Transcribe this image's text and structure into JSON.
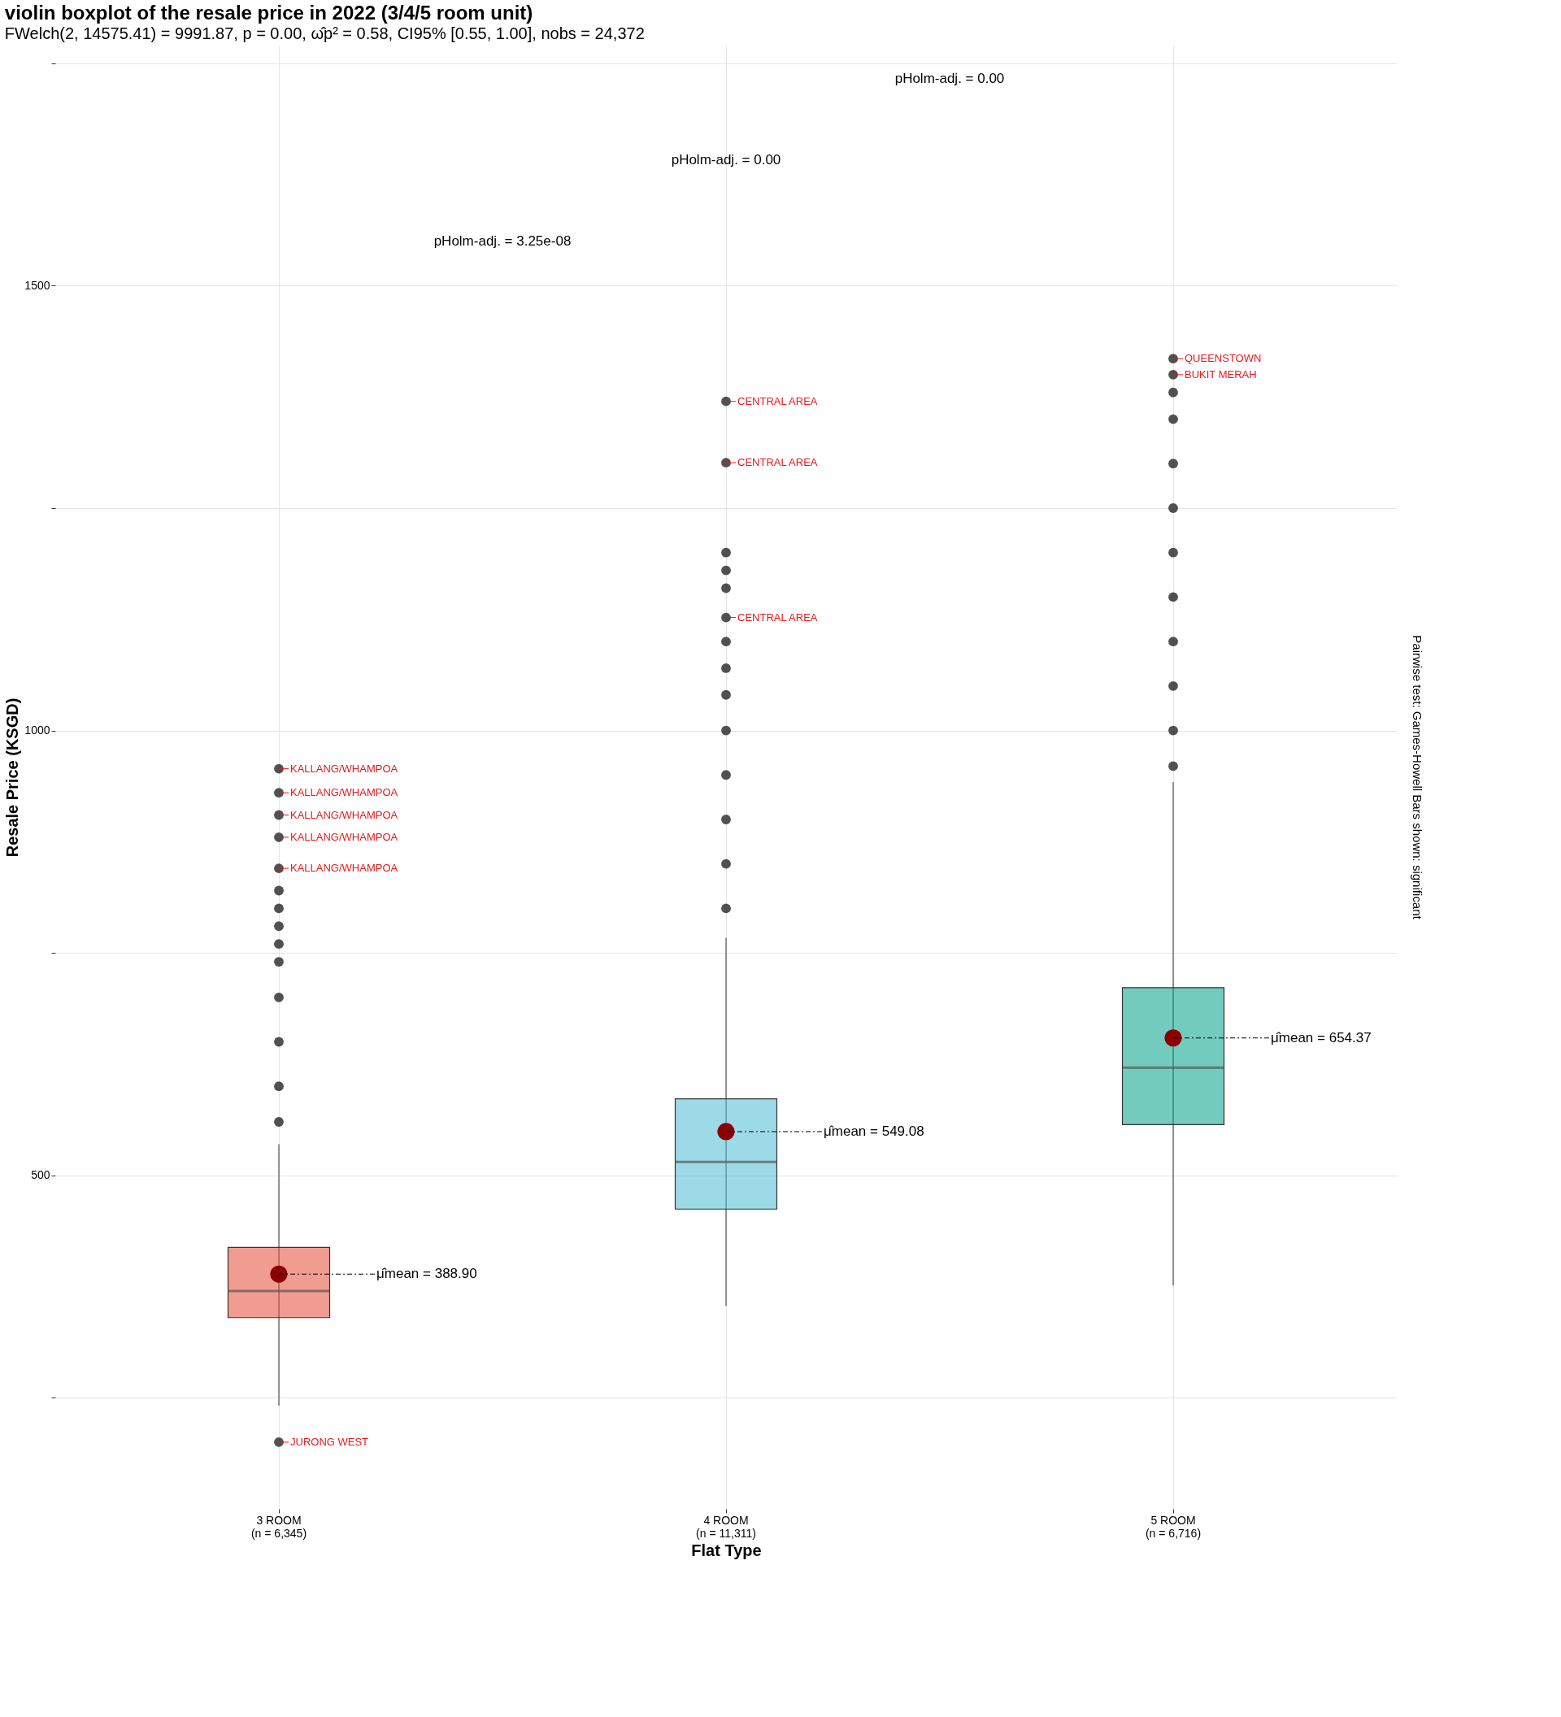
{
  "chart_data": {
    "type": "box",
    "title": "violin boxplot of the resale price in 2022 (3/4/5 room unit)",
    "subtitle": "FWelch(2, 14575.41) = 9991.87, p = 0.00, ω̂p² = 0.58, CI95% [0.55, 1.00], nobs = 24,372",
    "xlabel": "Flat Type",
    "ylabel": "Resale Price (KSGD)",
    "categories": [
      "3 ROOM\n(n = 6,345)",
      "4 ROOM\n(n = 11,311)",
      "5 ROOM\n(n = 6,716)"
    ],
    "colors": [
      "#e64b35",
      "#4dbbd5",
      "#00a087"
    ],
    "boxes": [
      {
        "low": 241,
        "q1": 340,
        "median": 370,
        "q3": 419,
        "high": 535,
        "mean": 388.9
      },
      {
        "low": 353,
        "q1": 462,
        "median": 515,
        "q3": 586,
        "high": 767,
        "mean": 549.08
      },
      {
        "low": 376,
        "q1": 557,
        "median": 621,
        "q3": 711,
        "high": 942,
        "mean": 654.37
      }
    ],
    "series": [
      {
        "type": "scatter",
        "color": "#333333",
        "x": [
          "3 ROOM\n(n = 6,345)",
          "3 ROOM\n(n = 6,345)",
          "3 ROOM\n(n = 6,345)",
          "3 ROOM\n(n = 6,345)",
          "3 ROOM\n(n = 6,345)",
          "3 ROOM\n(n = 6,345)",
          "3 ROOM\n(n = 6,345)",
          "3 ROOM\n(n = 6,345)",
          "3 ROOM\n(n = 6,345)",
          "3 ROOM\n(n = 6,345)",
          "3 ROOM\n(n = 6,345)",
          "3 ROOM\n(n = 6,345)",
          "3 ROOM\n(n = 6,345)",
          "3 ROOM\n(n = 6,345)",
          "3 ROOM\n(n = 6,345)",
          "4 ROOM\n(n = 11,311)",
          "4 ROOM\n(n = 11,311)",
          "4 ROOM\n(n = 11,311)",
          "4 ROOM\n(n = 11,311)",
          "4 ROOM\n(n = 11,311)",
          "4 ROOM\n(n = 11,311)",
          "4 ROOM\n(n = 11,311)",
          "4 ROOM\n(n = 11,311)",
          "4 ROOM\n(n = 11,311)",
          "4 ROOM\n(n = 11,311)",
          "4 ROOM\n(n = 11,311)",
          "4 ROOM\n(n = 11,311)",
          "4 ROOM\n(n = 11,311)",
          "4 ROOM\n(n = 11,311)",
          "5 ROOM\n(n = 6,716)",
          "5 ROOM\n(n = 6,716)",
          "5 ROOM\n(n = 6,716)",
          "5 ROOM\n(n = 6,716)",
          "5 ROOM\n(n = 6,716)",
          "5 ROOM\n(n = 6,716)",
          "5 ROOM\n(n = 6,716)",
          "5 ROOM\n(n = 6,716)",
          "5 ROOM\n(n = 6,716)",
          "5 ROOM\n(n = 6,716)",
          "5 ROOM\n(n = 6,716)",
          "5 ROOM\n(n = 6,716)"
        ],
        "values": [
          200,
          560,
          600,
          650,
          700,
          740,
          760,
          780,
          800,
          820,
          845,
          880,
          905,
          930,
          957,
          800,
          850,
          900,
          950,
          1000,
          1040,
          1070,
          1100,
          1127,
          1160,
          1180,
          1200,
          1301,
          1370,
          960,
          1000,
          1050,
          1100,
          1150,
          1200,
          1250,
          1300,
          1350,
          1380,
          1400,
          1418
        ]
      }
    ],
    "ylim": [
      125,
      1770
    ],
    "yticks": [
      {
        "value": 250,
        "label": null
      },
      500,
      {
        "value": 750,
        "label": null
      },
      1000,
      {
        "value": 1250,
        "label": null
      },
      1500,
      {
        "value": 1750,
        "label": null
      }
    ],
    "grid": true,
    "annotations": [
      {
        "text": "μ̂mean = 388.90",
        "x": "3 ROOM\n(n = 6,345)",
        "y": 388.9
      },
      {
        "text": "μ̂mean = 549.08",
        "x": "4 ROOM\n(n = 11,311)",
        "y": 549.08
      },
      {
        "text": "μ̂mean = 654.37",
        "x": "5 ROOM\n(n = 6,716)",
        "y": 654.37
      },
      {
        "text": "KALLANG/WHAMPOA",
        "x": "3 ROOM\n(n = 6,345)",
        "y": 957
      },
      {
        "text": "KALLANG/WHAMPOA",
        "x": "3 ROOM\n(n = 6,345)",
        "y": 930
      },
      {
        "text": "KALLANG/WHAMPOA",
        "x": "3 ROOM\n(n = 6,345)",
        "y": 905
      },
      {
        "text": "KALLANG/WHAMPOA",
        "x": "3 ROOM\n(n = 6,345)",
        "y": 880
      },
      {
        "text": "KALLANG/WHAMPOA",
        "x": "3 ROOM\n(n = 6,345)",
        "y": 845
      },
      {
        "text": "JURONG WEST",
        "x": "3 ROOM\n(n = 6,345)",
        "y": 200
      },
      {
        "text": "CENTRAL AREA",
        "x": "4 ROOM\n(n = 11,311)",
        "y": 1370
      },
      {
        "text": "CENTRAL AREA",
        "x": "4 ROOM\n(n = 11,311)",
        "y": 1301
      },
      {
        "text": "CENTRAL AREA",
        "x": "4 ROOM\n(n = 11,311)",
        "y": 1127
      },
      {
        "text": "QUEENSTOWN",
        "x": "5 ROOM\n(n = 6,716)",
        "y": 1418
      },
      {
        "text": "BUKIT MERAH",
        "x": "5 ROOM\n(n = 6,716)",
        "y": 1400
      },
      "pHolm-adj. = 3.25e-08",
      "pHolm-adj. = 0.00",
      "pHolm-adj. = 0.00",
      "Pairwise test: Games-Howell Bars shown: significant"
    ]
  }
}
